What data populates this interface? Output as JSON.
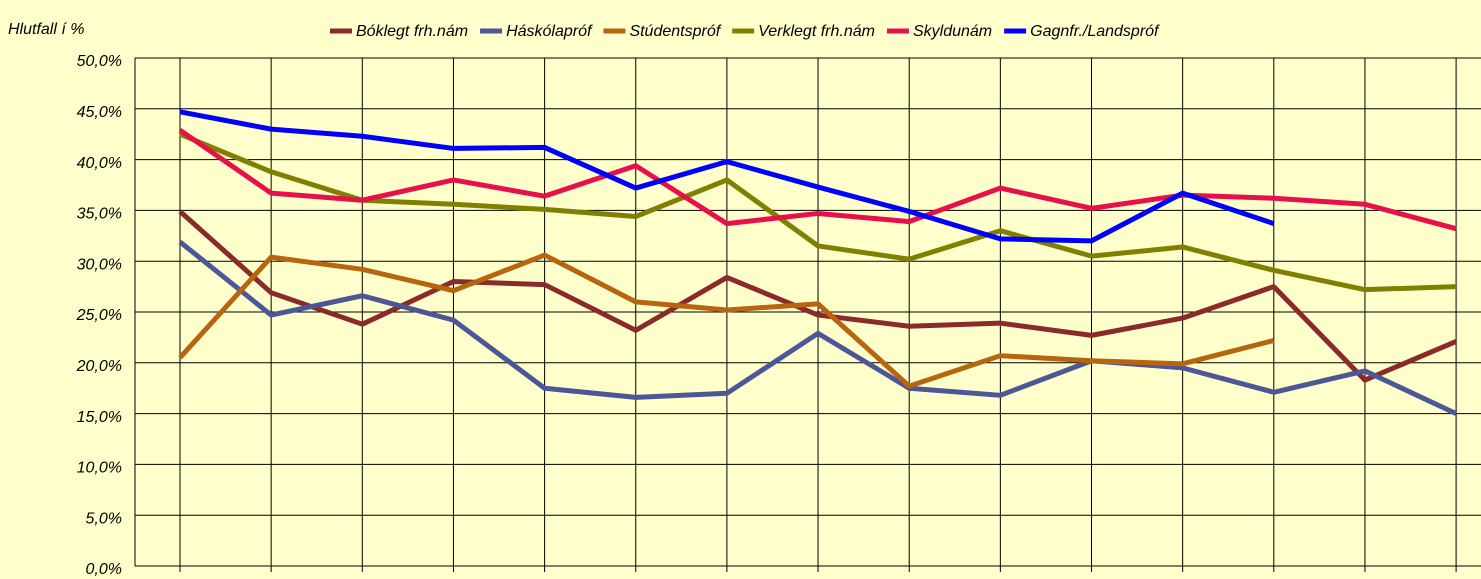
{
  "chart_data": {
    "type": "line",
    "y_label": "Hlutfall í %",
    "categories": [
      null,
      null,
      null,
      null,
      null,
      null,
      null,
      null,
      null,
      null,
      null,
      null,
      null,
      null,
      null
    ],
    "series": [
      {
        "name": "Bóklegt frh.nám",
        "color": "#8b2a2a",
        "values": [
          34.9,
          26.9,
          23.8,
          28.0,
          27.7,
          23.2,
          28.4,
          24.7,
          23.6,
          23.9,
          22.7,
          24.4,
          27.5,
          18.3,
          22.1
        ]
      },
      {
        "name": "Háskólapróf",
        "color": "#4b5796",
        "values": [
          31.9,
          24.7,
          26.6,
          24.2,
          17.5,
          16.6,
          17.0,
          22.9,
          17.5,
          16.8,
          20.2,
          19.5,
          17.1,
          19.2,
          15.0
        ]
      },
      {
        "name": "Stúdentspróf",
        "color": "#b8650f",
        "values": [
          20.5,
          30.4,
          29.2,
          27.1,
          30.6,
          26.0,
          25.2,
          25.8,
          17.7,
          20.7,
          20.2,
          19.9,
          22.2,
          null,
          null
        ]
      },
      {
        "name": "Verklegt frh.nám",
        "color": "#808000",
        "values": [
          42.5,
          38.8,
          36.0,
          35.6,
          35.1,
          34.4,
          38.0,
          31.5,
          30.2,
          33.0,
          30.5,
          31.4,
          29.1,
          27.2,
          27.5
        ]
      },
      {
        "name": "Skyldunám",
        "color": "#e8104a",
        "values": [
          42.9,
          36.7,
          36.0,
          38.0,
          36.4,
          39.4,
          33.7,
          34.7,
          33.9,
          37.2,
          35.2,
          36.5,
          36.2,
          35.6,
          33.2
        ]
      },
      {
        "name": "Gagnfr./Landspróf",
        "color": "#0000ff",
        "values": [
          44.7,
          43.0,
          42.3,
          41.1,
          41.2,
          37.2,
          39.8,
          37.3,
          34.9,
          32.2,
          32.0,
          36.7,
          33.7,
          null,
          null
        ]
      }
    ],
    "ylim": [
      0,
      50
    ],
    "yticks": [
      {
        "value": 0,
        "label": "0,0%"
      },
      {
        "value": 5,
        "label": "5,0%"
      },
      {
        "value": 10,
        "label": "10,0%"
      },
      {
        "value": 15,
        "label": "15,0%"
      },
      {
        "value": 20,
        "label": "20,0%"
      },
      {
        "value": 25,
        "label": "25,0%"
      },
      {
        "value": 30,
        "label": "30,0%"
      },
      {
        "value": 35,
        "label": "35,0%"
      },
      {
        "value": 40,
        "label": "40,0%"
      },
      {
        "value": 45,
        "label": "45,0%"
      },
      {
        "value": 50,
        "label": "50,0%"
      }
    ],
    "grid": true,
    "legend": "top"
  }
}
